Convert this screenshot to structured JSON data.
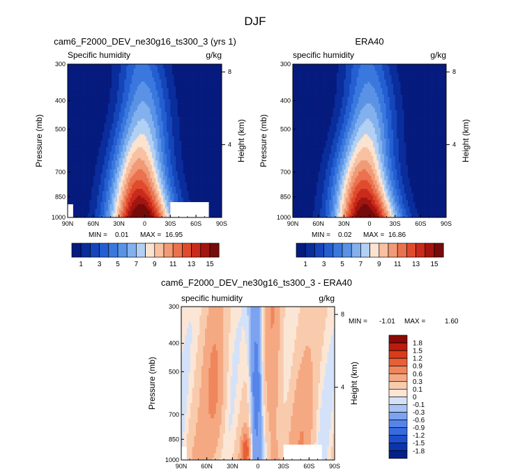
{
  "season": "DJF",
  "palettes": {
    "abs": [
      "#061b7e",
      "#0a2d9c",
      "#1446b9",
      "#245fd2",
      "#3a78de",
      "#5a93e6",
      "#82b1ee",
      "#b2d0f4",
      "#fbe3d0",
      "#f7c1a2",
      "#f19a76",
      "#ea724f",
      "#e04b2e",
      "#c92a1b",
      "#a41510",
      "#750b0b"
    ],
    "diff": [
      "#06208a",
      "#0b35ad",
      "#1c4fcd",
      "#386bdf",
      "#5685e9",
      "#7ca3f0",
      "#a8c4f5",
      "#d4e2f9",
      "#fbe6d6",
      "#f9cbad",
      "#f5a982",
      "#f0865c",
      "#e85f37",
      "#da3b1b",
      "#bc1c0e",
      "#8a0a08"
    ]
  },
  "chart_data": [
    {
      "id": "model",
      "type": "heatmap",
      "title": "cam6_F2000_DEV_ne30g16_ts300_3 (yrs 1)",
      "left_label": "Specific humidity",
      "units": "g/kg",
      "xlabel": "",
      "ylabel": "Pressure (mb)",
      "y2label": "Height (km)",
      "x_ticks": [
        "90N",
        "60N",
        "30N",
        "0",
        "30S",
        "60S",
        "90S"
      ],
      "y_ticks": [
        "300",
        "400",
        "500",
        "700",
        "850",
        "1000"
      ],
      "y2_ticks": [
        "8",
        "4"
      ],
      "min_label": "MIN =",
      "min_value": "0.01",
      "max_label": "MAX =",
      "max_value": "16.95",
      "colorbar_labels": [
        "1",
        "3",
        "5",
        "7",
        "9",
        "11",
        "13",
        "15"
      ],
      "peak": 16.95
    },
    {
      "id": "obs",
      "type": "heatmap",
      "title": "ERA40",
      "left_label": "specific humidity",
      "units": "g/kg",
      "xlabel": "",
      "ylabel": "Pressure (mb)",
      "y2label": "Height (km)",
      "x_ticks": [
        "90N",
        "60N",
        "30N",
        "0",
        "30S",
        "60S",
        "90S"
      ],
      "y_ticks": [
        "300",
        "400",
        "500",
        "700",
        "850",
        "1000"
      ],
      "y2_ticks": [
        "8",
        "4"
      ],
      "min_label": "MIN =",
      "min_value": "0.02",
      "max_label": "MAX =",
      "max_value": "16.86",
      "colorbar_labels": [
        "1",
        "3",
        "5",
        "7",
        "9",
        "11",
        "13",
        "15"
      ],
      "peak": 16.86
    },
    {
      "id": "diff",
      "type": "heatmap",
      "title": "cam6_F2000_DEV_ne30g16_ts300_3 - ERA40",
      "left_label": "specific humidity",
      "units": "g/kg",
      "xlabel": "",
      "ylabel": "Pressure (mb)",
      "y2label": "Height (km)",
      "x_ticks": [
        "90N",
        "60N",
        "30N",
        "0",
        "30S",
        "60S",
        "90S"
      ],
      "y_ticks": [
        "300",
        "400",
        "500",
        "700",
        "850",
        "1000"
      ],
      "y2_ticks": [
        "8",
        "4"
      ],
      "min_label": "MIN =",
      "min_value": "-1.01",
      "max_label": "MAX =",
      "max_value": "1.60",
      "colorbar_labels": [
        "1.8",
        "1.5",
        "1.2",
        "0.9",
        "0.6",
        "0.3",
        "0.1",
        "0",
        "-0.1",
        "-0.3",
        "-0.6",
        "-0.9",
        "-1.2",
        "-1.5",
        "-1.8"
      ]
    }
  ]
}
